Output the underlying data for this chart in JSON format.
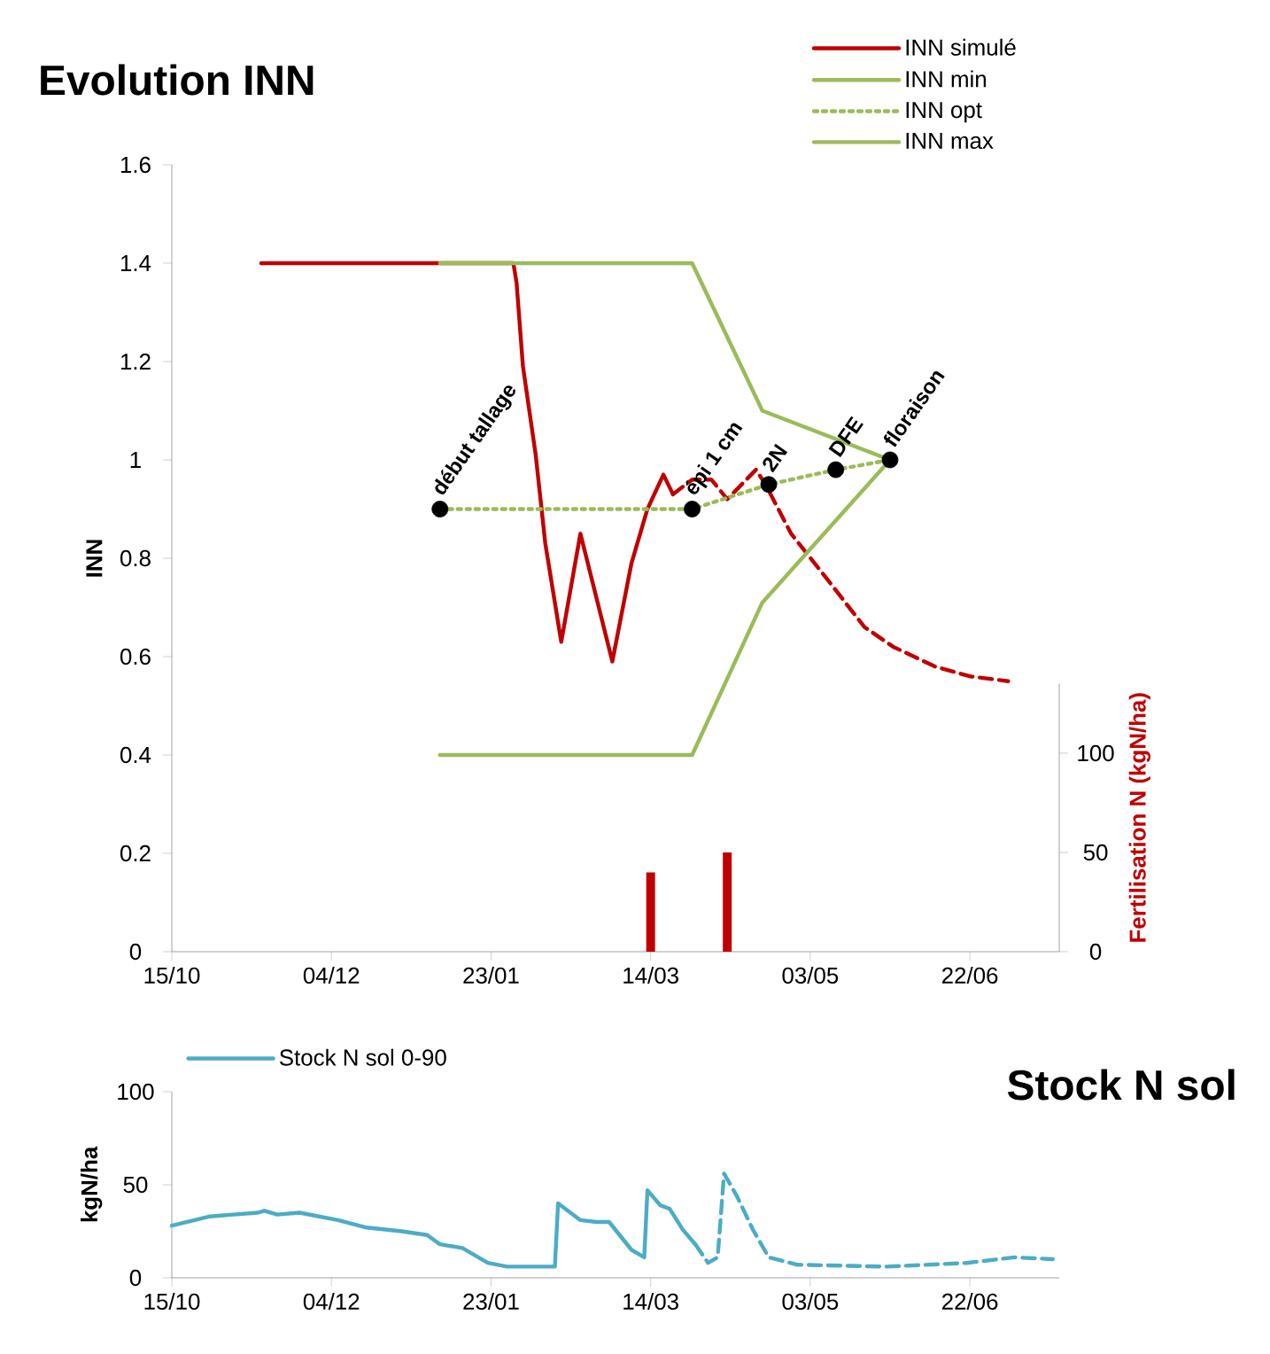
{
  "chart_data": [
    {
      "type": "line",
      "title": "Evolution INN",
      "ylabel": "INN",
      "y2label": "Fertilisation N (kgN/ha)",
      "legend": "top right",
      "xlim": [
        "2012-10-15",
        "2013-07-20"
      ],
      "xticks": [
        {
          "value": "2012-10-15",
          "label": "15/10"
        },
        {
          "value": "2012-12-04",
          "label": "04/12"
        },
        {
          "value": "2013-01-23",
          "label": "23/01"
        },
        {
          "value": "2013-03-14",
          "label": "14/03"
        },
        {
          "value": "2013-05-03",
          "label": "03/05"
        },
        {
          "value": "2013-06-22",
          "label": "22/06"
        }
      ],
      "ylim": [
        0,
        1.6
      ],
      "yticks": [
        0,
        0.2,
        0.4,
        0.6,
        0.8,
        1,
        1.2,
        1.4,
        1.6
      ],
      "y2lim": [
        0,
        135
      ],
      "y2ticks": [
        0,
        50,
        100
      ],
      "series": [
        {
          "name": "INN simulé",
          "color": "#c00000",
          "line_style": "solid",
          "x": [
            "2012-11-12",
            "2013-01-30",
            "2013-01-31",
            "2013-02-02",
            "2013-02-06",
            "2013-02-09",
            "2013-02-14",
            "2013-02-20",
            "2013-03-02",
            "2013-03-08",
            "2013-03-13",
            "2013-03-18",
            "2013-03-21"
          ],
          "values": [
            1.4,
            1.4,
            1.36,
            1.19,
            1.01,
            0.83,
            0.63,
            0.85,
            0.59,
            0.79,
            0.9,
            0.97,
            0.93
          ]
        },
        {
          "color": "#c00000",
          "line_style": "dashed",
          "x": [
            "2013-03-21",
            "2013-03-27",
            "2013-04-02",
            "2013-04-07",
            "2013-04-16",
            "2013-04-19",
            "2013-04-27",
            "2013-05-08",
            "2013-05-20",
            "2013-05-29",
            "2013-06-11",
            "2013-06-22",
            "2013-07-04"
          ],
          "values": [
            0.93,
            0.96,
            0.96,
            0.92,
            0.98,
            0.95,
            0.85,
            0.76,
            0.66,
            0.62,
            0.58,
            0.56,
            0.55
          ]
        },
        {
          "name": "INN min",
          "color": "#9bbb59",
          "line_style": "solid",
          "x": [
            "2013-01-07",
            "2013-03-27",
            "2013-04-18",
            "2013-05-28"
          ],
          "values": [
            0.4,
            0.4,
            0.71,
            1.0
          ]
        },
        {
          "name": "INN opt",
          "color": "#9bbb59",
          "line_style": "dotted",
          "x": [
            "2013-01-07",
            "2013-03-27",
            "2013-04-20",
            "2013-05-11",
            "2013-05-28"
          ],
          "values": [
            0.9,
            0.9,
            0.95,
            0.98,
            1.0
          ]
        },
        {
          "name": "INN max",
          "color": "#9bbb59",
          "line_style": "solid",
          "x": [
            "2013-01-07",
            "2013-03-27",
            "2013-04-18",
            "2013-05-28"
          ],
          "values": [
            1.4,
            1.4,
            1.1,
            1.0
          ]
        },
        {
          "type": "scatter",
          "marker": "circle",
          "color": "#000000",
          "x": [
            "2013-01-07",
            "2013-03-27",
            "2013-04-20",
            "2013-05-11",
            "2013-05-28"
          ],
          "values": [
            0.9,
            0.9,
            0.95,
            0.98,
            1.0
          ]
        },
        {
          "type": "bar",
          "axis": "y2",
          "color": "#c00000",
          "x": [
            "2013-03-14",
            "2013-04-07"
          ],
          "values": [
            40,
            50
          ]
        }
      ],
      "annotations": [
        {
          "text": "début tallage",
          "x": "2013-01-07",
          "y": 0.9
        },
        {
          "text": "épi 1 cm",
          "x": "2013-03-27",
          "y": 0.9
        },
        {
          "text": "2N",
          "x": "2013-04-20",
          "y": 0.95
        },
        {
          "text": "DFE",
          "x": "2013-05-11",
          "y": 0.98
        },
        {
          "text": "floraison",
          "x": "2013-05-28",
          "y": 1.0
        }
      ]
    },
    {
      "type": "line",
      "title": "Stock N sol",
      "ylabel": "kgN/ha",
      "legend": "top left",
      "xlim": [
        "2012-10-15",
        "2013-07-20"
      ],
      "xticks": [
        {
          "value": "2012-10-15",
          "label": "15/10"
        },
        {
          "value": "2012-12-04",
          "label": "04/12"
        },
        {
          "value": "2013-01-23",
          "label": "23/01"
        },
        {
          "value": "2013-03-14",
          "label": "14/03"
        },
        {
          "value": "2013-05-03",
          "label": "03/05"
        },
        {
          "value": "2013-06-22",
          "label": "22/06"
        }
      ],
      "ylim": [
        0,
        100
      ],
      "yticks": [
        0,
        50,
        100
      ],
      "series": [
        {
          "name": "Stock N sol 0-90",
          "color": "#4bacc6",
          "line_style": "solid",
          "x": [
            "2012-10-15",
            "2012-10-27",
            "2012-11-11",
            "2012-11-13",
            "2012-11-17",
            "2012-11-24",
            "2012-12-06",
            "2012-12-15",
            "2012-12-26",
            "2013-01-03",
            "2013-01-07",
            "2013-01-14",
            "2013-01-22",
            "2013-01-28",
            "2013-02-12",
            "2013-02-13",
            "2013-02-20",
            "2013-02-25",
            "2013-03-01",
            "2013-03-08",
            "2013-03-12",
            "2013-03-13",
            "2013-03-17",
            "2013-03-20",
            "2013-03-24",
            "2013-03-28"
          ],
          "values": [
            28,
            33,
            35,
            36,
            34,
            35,
            31,
            27,
            25,
            23,
            18,
            16,
            8,
            6,
            6,
            40,
            31,
            30,
            30,
            15,
            11,
            47,
            39,
            37,
            26,
            18
          ]
        },
        {
          "color": "#4bacc6",
          "line_style": "dashed",
          "x": [
            "2013-03-28",
            "2013-04-01",
            "2013-04-04",
            "2013-04-06",
            "2013-04-10",
            "2013-04-15",
            "2013-04-20",
            "2013-04-29",
            "2013-05-27",
            "2013-06-21",
            "2013-07-06",
            "2013-07-18"
          ],
          "values": [
            18,
            8,
            11,
            56,
            44,
            26,
            11,
            7,
            6,
            8,
            11,
            10
          ]
        }
      ]
    }
  ]
}
